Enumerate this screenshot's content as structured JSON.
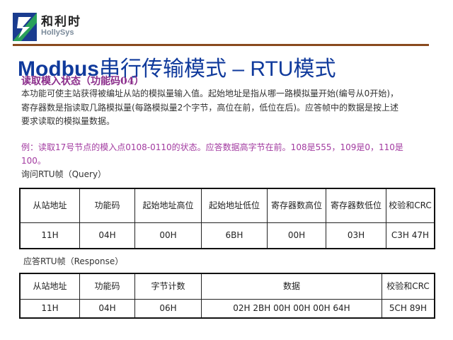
{
  "logo": {
    "cn": "和利时",
    "en": "HollySys",
    "colors": [
      "#1a3c8f",
      "#2aa05a"
    ]
  },
  "title": {
    "latin": "Modbus",
    "cn": "串行传输模式",
    "sep": " – ",
    "mode": "RTU模式"
  },
  "subtitle": "读取模入状态（功能码04）",
  "description": "本功能可使主站获得被编址从站的模拟量输入值。起始地址是指从哪一路模拟量开始(编号从0开始)，寄存器数是指读取几路模拟量(每路模拟量2个字节，高位在前，低位在后)。应答帧中的数据是按上述要求读取的模拟量数据。",
  "example": "例：读取17号节点的模入点0108-0110的状态。应答数据高字节在前。108是555，109是0，110是100。",
  "query": {
    "label": "询问RTU帧（Query）",
    "headers": [
      "从站地址",
      "功能码",
      "起始地址高位",
      "起始地址低位",
      "寄存器数高位",
      "寄存器数低位",
      "校验和CRC"
    ],
    "values": [
      "11H",
      "04H",
      "00H",
      "6BH",
      "00H",
      "03H",
      "C3H 47H"
    ]
  },
  "response": {
    "label": "应答RTU帧（Response）",
    "headers": [
      "从站地址",
      "功能码",
      "字节计数",
      "数据",
      "校验和CRC"
    ],
    "values": [
      "11H",
      "04H",
      "06H",
      "02H 2BH 00H 00H 00H 64H",
      "5CH 89H"
    ]
  }
}
